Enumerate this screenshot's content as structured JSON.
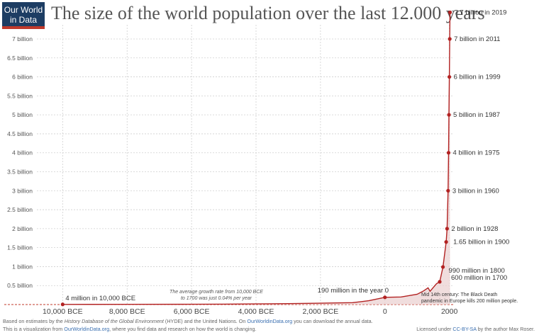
{
  "logo": {
    "line1": "Our World",
    "line2": "in Data"
  },
  "title": "The size of the world population over the last 12.000 years",
  "chart_data": {
    "type": "area",
    "title": "The size of the world population over the last 12.000 years",
    "xlabel": "",
    "ylabel": "",
    "xlim": [
      -10800,
      2250
    ],
    "ylim": [
      0,
      7.7
    ],
    "x_ticks": [
      {
        "value": -10000,
        "label": "10,000 BCE"
      },
      {
        "value": -8000,
        "label": "8,000 BCE"
      },
      {
        "value": -6000,
        "label": "6,000 BCE"
      },
      {
        "value": -4000,
        "label": "4,000 BCE"
      },
      {
        "value": -2000,
        "label": "2,000 BCE"
      },
      {
        "value": 0,
        "label": "0"
      },
      {
        "value": 2000,
        "label": "2000"
      }
    ],
    "y_ticks": [
      {
        "value": 0.5,
        "label": "0.5 billion"
      },
      {
        "value": 1,
        "label": "1 billion"
      },
      {
        "value": 1.5,
        "label": "1.5 billion"
      },
      {
        "value": 2,
        "label": "2 billion"
      },
      {
        "value": 2.5,
        "label": "2.5 billion"
      },
      {
        "value": 3,
        "label": "3 billion"
      },
      {
        "value": 3.5,
        "label": "3.5 billion"
      },
      {
        "value": 4,
        "label": "4 billion"
      },
      {
        "value": 4.5,
        "label": "4.5 billion"
      },
      {
        "value": 5,
        "label": "5 billion"
      },
      {
        "value": 5.5,
        "label": "5.5 billion"
      },
      {
        "value": 6,
        "label": "6 billion"
      },
      {
        "value": 6.5,
        "label": "6.5 billion"
      },
      {
        "value": 7,
        "label": "7 billion"
      }
    ],
    "grid": true,
    "series": [
      {
        "color": "#b22222",
        "points": [
          [
            -10000,
            0.004
          ],
          [
            -8000,
            0.005
          ],
          [
            -6000,
            0.008
          ],
          [
            -5000,
            0.012
          ],
          [
            -4000,
            0.016
          ],
          [
            -3000,
            0.025
          ],
          [
            -2000,
            0.035
          ],
          [
            -1000,
            0.05
          ],
          [
            -500,
            0.1
          ],
          [
            0,
            0.19
          ],
          [
            500,
            0.2
          ],
          [
            1000,
            0.27
          ],
          [
            1200,
            0.36
          ],
          [
            1340,
            0.44
          ],
          [
            1400,
            0.35
          ],
          [
            1500,
            0.45
          ],
          [
            1600,
            0.55
          ],
          [
            1700,
            0.6
          ],
          [
            1800,
            0.99
          ],
          [
            1900,
            1.65
          ],
          [
            1928,
            2
          ],
          [
            1960,
            3
          ],
          [
            1975,
            4
          ],
          [
            1987,
            5
          ],
          [
            1999,
            6
          ],
          [
            2011,
            7
          ],
          [
            2019,
            7.7
          ]
        ]
      }
    ],
    "markers": [
      {
        "x": -10000,
        "y": 0.004,
        "label": "4 million in 10,000 BCE"
      },
      {
        "x": 0,
        "y": 0.19,
        "label": "190 million in the year 0"
      },
      {
        "x": 1700,
        "y": 0.6,
        "label": "600 million in 1700"
      },
      {
        "x": 1800,
        "y": 0.99,
        "label": "990 million in 1800"
      },
      {
        "x": 1900,
        "y": 1.65,
        "label": "1.65 billion in 1900"
      },
      {
        "x": 1928,
        "y": 2,
        "label": "2 billion in 1928"
      },
      {
        "x": 1960,
        "y": 3,
        "label": "3 billion in 1960"
      },
      {
        "x": 1975,
        "y": 4,
        "label": "4 billion in 1975"
      },
      {
        "x": 1987,
        "y": 5,
        "label": "5 billion in 1987"
      },
      {
        "x": 1999,
        "y": 6,
        "label": "6 billion in 1999"
      },
      {
        "x": 2011,
        "y": 7,
        "label": "7 billion in 2011"
      },
      {
        "x": 2019,
        "y": 7.7,
        "label": "7.7 billion in 2019"
      }
    ],
    "annotations": [
      {
        "text_lines": [
          "The average growth rate from 10,000 BCE",
          "to 1700 was just  0.04% per year"
        ]
      },
      {
        "text_lines": [
          "Mid 14th century: The Black Death",
          "pandemic in Europe kills 200 million people."
        ]
      }
    ]
  },
  "footer": {
    "line1_a": "Based on estimates by the ",
    "line1_b": "History Database of the Global Environment",
    "line1_c": " (HYDE) and the United Nations. On ",
    "line1_link": "OurWorldinData.org",
    "line1_d": " you can download the annual data.",
    "line2_a": "This is a visualization from ",
    "line2_link": "OurWorldinData.org",
    "line2_b": ", where you find data and research on how the world is changing.",
    "license_a": "Licensed under ",
    "license_link": "CC-BY-SA",
    "license_b": " by the author Max Roser."
  }
}
